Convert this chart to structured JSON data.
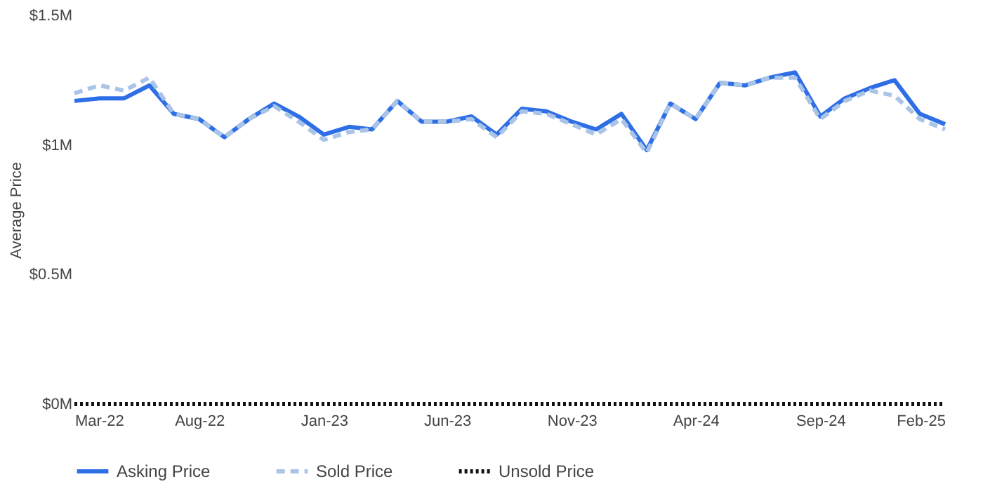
{
  "chart_data": {
    "type": "line",
    "ylabel": "Average Price",
    "x": [
      "2022-03",
      "2022-04",
      "2022-05",
      "2022-06",
      "2022-07",
      "2022-08",
      "2022-09",
      "2022-10",
      "2022-11",
      "2022-12",
      "2023-01",
      "2023-02",
      "2023-03",
      "2023-04",
      "2023-05",
      "2023-06",
      "2023-07",
      "2023-08",
      "2023-09",
      "2023-10",
      "2023-11",
      "2023-12",
      "2024-01",
      "2024-02",
      "2024-03",
      "2024-04",
      "2024-05",
      "2024-06",
      "2024-07",
      "2024-08",
      "2024-09",
      "2024-10",
      "2024-11",
      "2024-12",
      "2025-01",
      "2025-02"
    ],
    "series": [
      {
        "name": "Asking Price",
        "color": "#2f6fe6",
        "line_style": "solid",
        "values": [
          1.17,
          1.18,
          1.18,
          1.23,
          1.12,
          1.1,
          1.03,
          1.1,
          1.16,
          1.11,
          1.04,
          1.07,
          1.06,
          1.17,
          1.09,
          1.09,
          1.11,
          1.04,
          1.14,
          1.13,
          1.09,
          1.06,
          1.12,
          0.98,
          1.16,
          1.1,
          1.24,
          1.23,
          1.26,
          1.28,
          1.11,
          1.18,
          1.22,
          1.25,
          1.12,
          1.08
        ]
      },
      {
        "name": "Sold Price",
        "color": "#a9c4e6",
        "line_style": "dashed",
        "values": [
          1.2,
          1.23,
          1.21,
          1.26,
          1.12,
          1.1,
          1.03,
          1.1,
          1.15,
          1.09,
          1.02,
          1.05,
          1.06,
          1.17,
          1.09,
          1.09,
          1.1,
          1.03,
          1.13,
          1.12,
          1.08,
          1.04,
          1.1,
          0.97,
          1.16,
          1.1,
          1.24,
          1.23,
          1.26,
          1.26,
          1.1,
          1.17,
          1.21,
          1.19,
          1.1,
          1.06
        ]
      },
      {
        "name": "Unsold Price",
        "color": "#111111",
        "line_style": "dotted",
        "values": [
          0,
          0,
          0,
          0,
          0,
          0,
          0,
          0,
          0,
          0,
          0,
          0,
          0,
          0,
          0,
          0,
          0,
          0,
          0,
          0,
          0,
          0,
          0,
          0,
          0,
          0,
          0,
          0,
          0,
          0,
          0,
          0,
          0,
          0,
          0,
          0
        ]
      }
    ],
    "xlim": [
      "2022-03",
      "2025-02"
    ],
    "xticks": [
      {
        "value": "2022-03",
        "label": "Mar-22"
      },
      {
        "value": "2022-08",
        "label": "Aug-22"
      },
      {
        "value": "2023-01",
        "label": "Jan-23"
      },
      {
        "value": "2023-06",
        "label": "Jun-23"
      },
      {
        "value": "2023-11",
        "label": "Nov-23"
      },
      {
        "value": "2024-04",
        "label": "Apr-24"
      },
      {
        "value": "2024-09",
        "label": "Sep-24"
      },
      {
        "value": "2025-02",
        "label": "Feb-25"
      }
    ],
    "ylim": [
      0,
      1.5
    ],
    "yticks": [
      {
        "value": 0,
        "label": "$0M"
      },
      {
        "value": 0.5,
        "label": "$0.5M"
      },
      {
        "value": 1,
        "label": "$1M"
      },
      {
        "value": 1.5,
        "label": "$1.5M"
      }
    ],
    "grid": false,
    "legend": "bottom"
  }
}
